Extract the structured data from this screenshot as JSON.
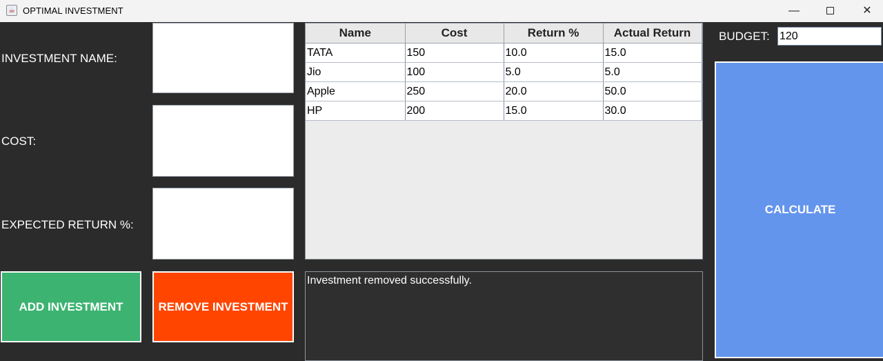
{
  "window": {
    "title": "OPTIMAL INVESTMENT",
    "app_icon": "java-cup-icon",
    "minimize_glyph": "—",
    "close_glyph": "✕"
  },
  "form": {
    "name_label": "INVESTMENT NAME:",
    "cost_label": "COST:",
    "return_label": "EXPECTED RETURN %:",
    "name_value": "",
    "cost_value": "",
    "return_value": ""
  },
  "buttons": {
    "add": "ADD INVESTMENT",
    "remove": "REMOVE INVESTMENT",
    "calculate": "CALCULATE"
  },
  "table": {
    "headers": [
      "Name",
      "Cost",
      "Return %",
      "Actual Return"
    ],
    "rows": [
      [
        "TATA",
        "150",
        "10.0",
        "15.0"
      ],
      [
        "Jio",
        "100",
        "5.0",
        "5.0"
      ],
      [
        "Apple",
        "250",
        "20.0",
        "50.0"
      ],
      [
        "HP",
        "200",
        "15.0",
        "30.0"
      ]
    ]
  },
  "message": "Investment removed successfully.",
  "budget": {
    "label": "BUDGET:",
    "value": "120"
  },
  "colors": {
    "add": "#3cb371",
    "remove": "#ff4500",
    "calculate": "#6495ed",
    "background": "#2b2b2b"
  }
}
